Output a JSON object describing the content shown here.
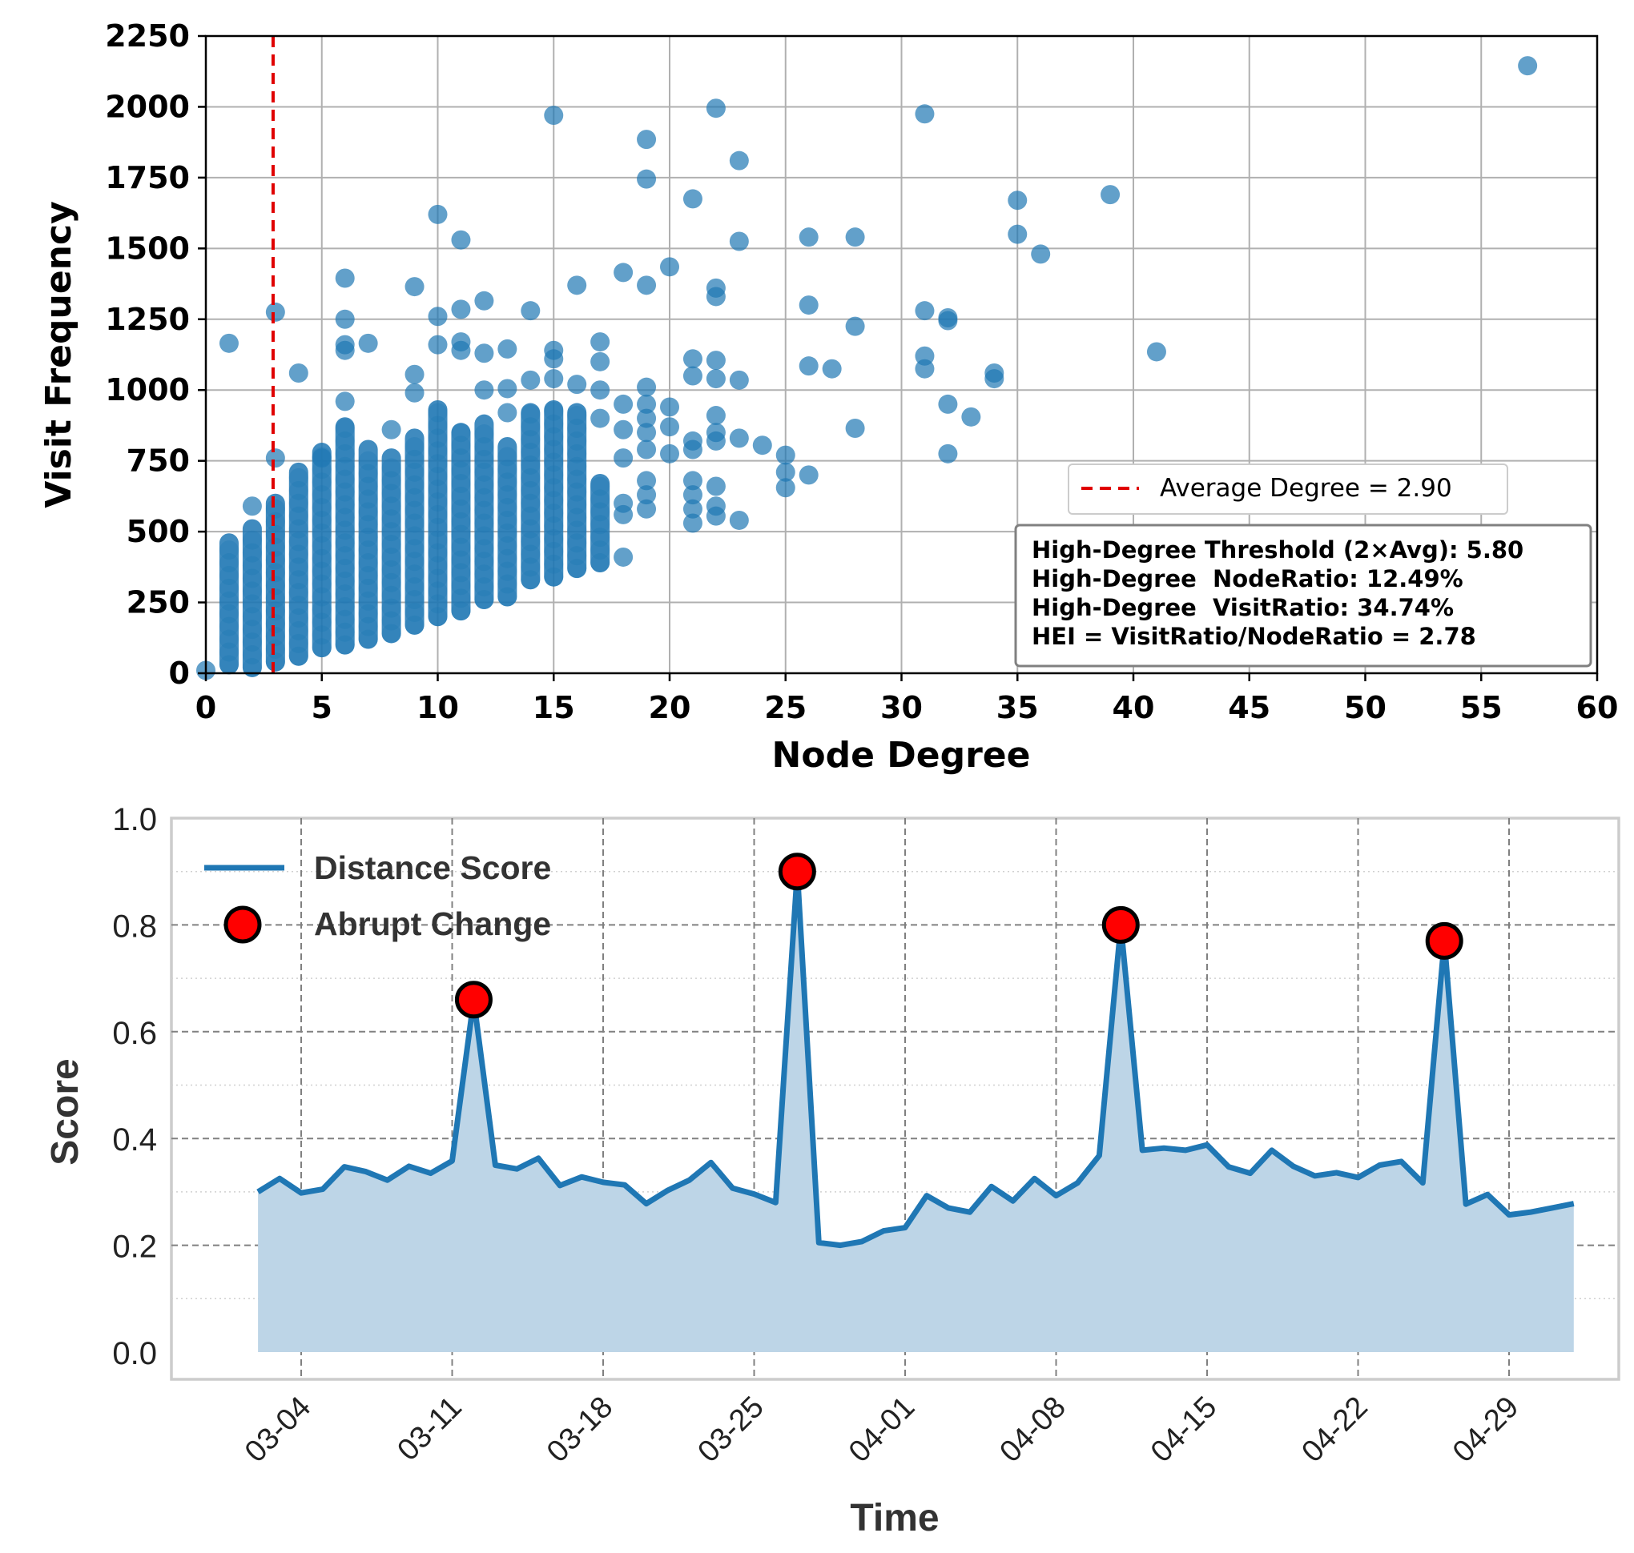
{
  "chart_data": [
    {
      "type": "scatter",
      "xlabel": "Node Degree",
      "ylabel": "Visit Frequency",
      "xlim": [
        0,
        60
      ],
      "ylim": [
        0,
        2250
      ],
      "xticks": [
        "0",
        "5",
        "10",
        "15",
        "20",
        "25",
        "30",
        "35",
        "40",
        "45",
        "50",
        "55",
        "60"
      ],
      "yticks": [
        "0",
        "250",
        "500",
        "750",
        "1000",
        "1250",
        "1500",
        "1750",
        "2000",
        "2250"
      ],
      "grid": true,
      "point_color": "#1f77b4",
      "reference_line": {
        "x": 2.9,
        "color": "#e00000",
        "style": "dashed",
        "legend": "Average Degree = 2.90"
      },
      "legend_position": "lower-right",
      "annotation_lines": [
        "High-Degree Threshold (2×Avg): 5.80",
        "High-Degree  NodeRatio: 12.49%",
        "High-Degree  VisitRatio: 34.74%",
        "HEI = VisitRatio/NodeRatio = 2.78"
      ],
      "columns": [
        {
          "x": 1,
          "min": 30,
          "max": 460
        },
        {
          "x": 2,
          "min": 20,
          "max": 510
        },
        {
          "x": 3,
          "min": 40,
          "max": 600
        },
        {
          "x": 4,
          "min": 60,
          "max": 710
        },
        {
          "x": 5,
          "min": 90,
          "max": 780
        },
        {
          "x": 6,
          "min": 100,
          "max": 870
        },
        {
          "x": 7,
          "min": 120,
          "max": 790
        },
        {
          "x": 8,
          "min": 140,
          "max": 760
        },
        {
          "x": 9,
          "min": 170,
          "max": 830
        },
        {
          "x": 10,
          "min": 200,
          "max": 930
        },
        {
          "x": 11,
          "min": 220,
          "max": 850
        },
        {
          "x": 12,
          "min": 260,
          "max": 880
        },
        {
          "x": 13,
          "min": 270,
          "max": 800
        },
        {
          "x": 14,
          "min": 330,
          "max": 920
        },
        {
          "x": 15,
          "min": 340,
          "max": 930
        },
        {
          "x": 16,
          "min": 370,
          "max": 920
        },
        {
          "x": 17,
          "min": 390,
          "max": 670
        }
      ],
      "points": [
        [
          0,
          10
        ],
        [
          1,
          1165
        ],
        [
          2,
          590
        ],
        [
          3,
          1275
        ],
        [
          3,
          760
        ],
        [
          4,
          1060
        ],
        [
          5,
          760
        ],
        [
          6,
          1395
        ],
        [
          6,
          1250
        ],
        [
          6,
          1160
        ],
        [
          6,
          1140
        ],
        [
          6,
          960
        ],
        [
          7,
          1165
        ],
        [
          8,
          860
        ],
        [
          9,
          1365
        ],
        [
          9,
          1055
        ],
        [
          9,
          990
        ],
        [
          10,
          1620
        ],
        [
          10,
          1260
        ],
        [
          10,
          1160
        ],
        [
          11,
          1530
        ],
        [
          11,
          1285
        ],
        [
          11,
          1170
        ],
        [
          11,
          1140
        ],
        [
          12,
          1315
        ],
        [
          12,
          1130
        ],
        [
          12,
          1000
        ],
        [
          13,
          1145
        ],
        [
          13,
          1005
        ],
        [
          13,
          920
        ],
        [
          14,
          1280
        ],
        [
          14,
          1035
        ],
        [
          15,
          1970
        ],
        [
          15,
          1140
        ],
        [
          15,
          1110
        ],
        [
          15,
          1040
        ],
        [
          16,
          1370
        ],
        [
          16,
          1020
        ],
        [
          17,
          1170
        ],
        [
          17,
          1100
        ],
        [
          17,
          1000
        ],
        [
          17,
          900
        ],
        [
          18,
          1415
        ],
        [
          18,
          950
        ],
        [
          18,
          860
        ],
        [
          18,
          760
        ],
        [
          18,
          600
        ],
        [
          18,
          560
        ],
        [
          18,
          410
        ],
        [
          19,
          1885
        ],
        [
          19,
          1745
        ],
        [
          19,
          1370
        ],
        [
          19,
          1010
        ],
        [
          19,
          950
        ],
        [
          19,
          900
        ],
        [
          19,
          850
        ],
        [
          19,
          790
        ],
        [
          19,
          680
        ],
        [
          19,
          630
        ],
        [
          19,
          580
        ],
        [
          20,
          1435
        ],
        [
          20,
          940
        ],
        [
          20,
          870
        ],
        [
          20,
          775
        ],
        [
          21,
          1675
        ],
        [
          21,
          1110
        ],
        [
          21,
          1050
        ],
        [
          21,
          820
        ],
        [
          21,
          790
        ],
        [
          21,
          680
        ],
        [
          21,
          630
        ],
        [
          21,
          580
        ],
        [
          21,
          530
        ],
        [
          22,
          1995
        ],
        [
          22,
          1360
        ],
        [
          22,
          1330
        ],
        [
          22,
          1105
        ],
        [
          22,
          1040
        ],
        [
          22,
          910
        ],
        [
          22,
          850
        ],
        [
          22,
          820
        ],
        [
          22,
          660
        ],
        [
          22,
          590
        ],
        [
          22,
          555
        ],
        [
          23,
          1810
        ],
        [
          23,
          1525
        ],
        [
          23,
          1035
        ],
        [
          23,
          830
        ],
        [
          23,
          540
        ],
        [
          24,
          805
        ],
        [
          25,
          770
        ],
        [
          25,
          710
        ],
        [
          25,
          655
        ],
        [
          26,
          1540
        ],
        [
          26,
          1300
        ],
        [
          26,
          1085
        ],
        [
          26,
          700
        ],
        [
          27,
          1075
        ],
        [
          28,
          1540
        ],
        [
          28,
          1225
        ],
        [
          28,
          865
        ],
        [
          31,
          1975
        ],
        [
          31,
          1280
        ],
        [
          31,
          1120
        ],
        [
          31,
          1075
        ],
        [
          32,
          1255
        ],
        [
          32,
          1245
        ],
        [
          32,
          950
        ],
        [
          32,
          775
        ],
        [
          33,
          905
        ],
        [
          34,
          1060
        ],
        [
          34,
          1040
        ],
        [
          35,
          1670
        ],
        [
          35,
          1550
        ],
        [
          36,
          1480
        ],
        [
          39,
          1690
        ],
        [
          41,
          1135
        ],
        [
          57,
          2145
        ]
      ]
    },
    {
      "type": "line",
      "xlabel": "Time",
      "ylabel": "Score",
      "ylim": [
        0.0,
        1.0
      ],
      "yticks": [
        "0.0",
        "0.2",
        "0.4",
        "0.6",
        "0.8",
        "1.0"
      ],
      "xticks": [
        "03-04",
        "03-11",
        "03-18",
        "03-25",
        "04-01",
        "04-08",
        "04-15",
        "04-22",
        "04-29"
      ],
      "grid": true,
      "legend_position": "upper-left",
      "series": [
        {
          "name": "Distance Score",
          "color": "#1f77b4",
          "fill": "#bdd5e7",
          "points": [
            [
              "2025-03-02",
              0.3
            ],
            [
              "2025-03-03",
              0.325
            ],
            [
              "2025-03-04",
              0.298
            ],
            [
              "2025-03-05",
              0.305
            ],
            [
              "2025-03-06",
              0.347
            ],
            [
              "2025-03-07",
              0.338
            ],
            [
              "2025-03-08",
              0.322
            ],
            [
              "2025-03-09",
              0.348
            ],
            [
              "2025-03-10",
              0.335
            ],
            [
              "2025-03-11",
              0.358
            ],
            [
              "2025-03-12",
              0.66
            ],
            [
              "2025-03-13",
              0.35
            ],
            [
              "2025-03-14",
              0.343
            ],
            [
              "2025-03-15",
              0.363
            ],
            [
              "2025-03-16",
              0.312
            ],
            [
              "2025-03-17",
              0.328
            ],
            [
              "2025-03-18",
              0.318
            ],
            [
              "2025-03-19",
              0.313
            ],
            [
              "2025-03-20",
              0.278
            ],
            [
              "2025-03-21",
              0.303
            ],
            [
              "2025-03-22",
              0.322
            ],
            [
              "2025-03-23",
              0.355
            ],
            [
              "2025-03-24",
              0.307
            ],
            [
              "2025-03-25",
              0.296
            ],
            [
              "2025-03-26",
              0.28
            ],
            [
              "2025-03-27",
              0.9
            ],
            [
              "2025-03-28",
              0.205
            ],
            [
              "2025-03-29",
              0.2
            ],
            [
              "2025-03-30",
              0.207
            ],
            [
              "2025-03-31",
              0.227
            ],
            [
              "2025-04-01",
              0.233
            ],
            [
              "2025-04-02",
              0.293
            ],
            [
              "2025-04-03",
              0.27
            ],
            [
              "2025-04-04",
              0.262
            ],
            [
              "2025-04-05",
              0.31
            ],
            [
              "2025-04-06",
              0.283
            ],
            [
              "2025-04-07",
              0.325
            ],
            [
              "2025-04-08",
              0.293
            ],
            [
              "2025-04-09",
              0.317
            ],
            [
              "2025-04-10",
              0.368
            ],
            [
              "2025-04-11",
              0.8
            ],
            [
              "2025-04-12",
              0.378
            ],
            [
              "2025-04-13",
              0.382
            ],
            [
              "2025-04-14",
              0.378
            ],
            [
              "2025-04-15",
              0.388
            ],
            [
              "2025-04-16",
              0.347
            ],
            [
              "2025-04-17",
              0.335
            ],
            [
              "2025-04-18",
              0.378
            ],
            [
              "2025-04-19",
              0.348
            ],
            [
              "2025-04-20",
              0.33
            ],
            [
              "2025-04-21",
              0.336
            ],
            [
              "2025-04-22",
              0.327
            ],
            [
              "2025-04-23",
              0.35
            ],
            [
              "2025-04-24",
              0.357
            ],
            [
              "2025-04-25",
              0.317
            ],
            [
              "2025-04-26",
              0.77
            ],
            [
              "2025-04-27",
              0.277
            ],
            [
              "2025-04-28",
              0.295
            ],
            [
              "2025-04-29",
              0.257
            ],
            [
              "2025-04-30",
              0.262
            ],
            [
              "2025-05-01",
              0.27
            ],
            [
              "2025-05-02",
              0.278
            ]
          ]
        },
        {
          "name": "Abrupt Change",
          "color": "#ff0000",
          "marker": "circle",
          "points": [
            [
              "2025-03-12",
              0.66
            ],
            [
              "2025-03-27",
              0.9
            ],
            [
              "2025-04-11",
              0.8
            ],
            [
              "2025-04-26",
              0.77
            ]
          ]
        }
      ]
    }
  ]
}
